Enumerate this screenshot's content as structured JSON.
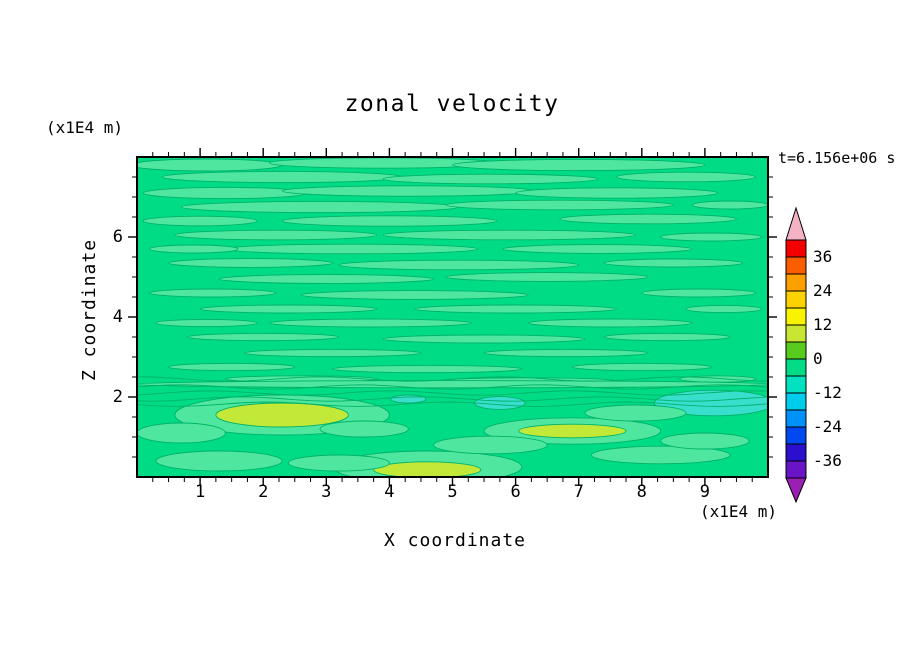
{
  "figure": {
    "title": "zonal velocity",
    "time_label": "t=6.156e+06 s",
    "x_axis": {
      "label": "X coordinate",
      "units": "(x1E4 m)"
    },
    "y_axis": {
      "label": "Z coordinate",
      "units": "(x1E4 m)"
    }
  },
  "chart_data": {
    "type": "contour",
    "title": "zonal velocity",
    "xlabel": "X coordinate",
    "ylabel": "Z coordinate",
    "x_units_label": "(x1E4 m)",
    "y_units_label": "(x1E4 m)",
    "time_annotation": "t=6.156e+06 s",
    "xlim": [
      0,
      10
    ],
    "ylim": [
      0,
      8
    ],
    "x_ticks": [
      1,
      2,
      3,
      4,
      5,
      6,
      7,
      8,
      9
    ],
    "y_ticks": [
      2,
      4,
      6
    ],
    "x_minor_step": 0.25,
    "y_minor_step": 0.5,
    "grid": false,
    "legend_position": "right-colorbar",
    "colorbar": {
      "tick_labels_top_to_bottom": [
        "36",
        "24",
        "12",
        "0",
        "-12",
        "-24",
        "-36"
      ],
      "levels": [
        -42,
        -36,
        -30,
        -24,
        -18,
        -12,
        -6,
        0,
        6,
        12,
        18,
        24,
        30,
        36,
        42
      ],
      "colors_top_to_bottom": [
        "#f40000",
        "#f95d00",
        "#fca000",
        "#fcd200",
        "#f8f400",
        "#c8e632",
        "#58cc1e",
        "#00dc86",
        "#00e2c0",
        "#00ccec",
        "#0092f8",
        "#0048f0",
        "#2a10cc",
        "#6a14c8"
      ],
      "over_arrow_color": "#f5b2c4",
      "under_arrow_color": "#9a20b4"
    },
    "field": {
      "description": "Zonal velocity is near zero (green, -6 to 6) over most of the domain, organized into thin horizontal streaks. A band of closely spaced contour lines crosses the full width near z=2. Weak positive anomalies (6-12, yellow-green) sit near x=2.3 z=1.5, x=6.9 z=1.2 and bottom center x=4.6. Weak negative anomalies (-12 to -6, cyan) sit near x=9.2 z=1.9 and x=5.8 z=1.9.",
      "base_color": "#00dc86",
      "streak_colors": {
        "g2": "#4fe79f",
        "y": "#c2e838",
        "c": "#39dfcd"
      },
      "contour_line_color": "#00b269",
      "contour_lines_z": [
        2.45,
        2.25,
        2.1,
        1.95,
        1.82
      ],
      "streaks": [
        [
          1.1,
          7.8,
          1.2,
          0.15,
          "g2"
        ],
        [
          3.9,
          7.85,
          1.8,
          0.13,
          "g2"
        ],
        [
          7.0,
          7.8,
          2.0,
          0.14,
          "g2"
        ],
        [
          2.3,
          7.5,
          1.9,
          0.14,
          "g2"
        ],
        [
          5.6,
          7.45,
          1.7,
          0.12,
          "g2"
        ],
        [
          8.7,
          7.5,
          1.1,
          0.12,
          "g2"
        ],
        [
          1.4,
          7.1,
          1.3,
          0.14,
          "g2"
        ],
        [
          4.3,
          7.15,
          2.0,
          0.13,
          "g2"
        ],
        [
          7.6,
          7.1,
          1.6,
          0.13,
          "g2"
        ],
        [
          2.9,
          6.75,
          2.2,
          0.14,
          "g2"
        ],
        [
          6.7,
          6.8,
          1.8,
          0.12,
          "g2"
        ],
        [
          9.4,
          6.8,
          0.6,
          0.1,
          "g2"
        ],
        [
          1.0,
          6.4,
          0.9,
          0.12,
          "g2"
        ],
        [
          4.0,
          6.4,
          1.7,
          0.13,
          "g2"
        ],
        [
          8.1,
          6.45,
          1.4,
          0.12,
          "g2"
        ],
        [
          2.2,
          6.05,
          1.6,
          0.12,
          "g2"
        ],
        [
          5.9,
          6.05,
          2.0,
          0.12,
          "g2"
        ],
        [
          9.1,
          6.0,
          0.8,
          0.1,
          "g2"
        ],
        [
          3.4,
          5.7,
          2.0,
          0.12,
          "g2"
        ],
        [
          7.3,
          5.7,
          1.5,
          0.11,
          "g2"
        ],
        [
          0.9,
          5.7,
          0.7,
          0.1,
          "g2"
        ],
        [
          1.8,
          5.35,
          1.3,
          0.11,
          "g2"
        ],
        [
          5.1,
          5.3,
          1.9,
          0.12,
          "g2"
        ],
        [
          8.5,
          5.35,
          1.1,
          0.1,
          "g2"
        ],
        [
          3.0,
          4.95,
          1.7,
          0.11,
          "g2"
        ],
        [
          6.5,
          5.0,
          1.6,
          0.11,
          "g2"
        ],
        [
          1.2,
          4.6,
          1.0,
          0.1,
          "g2"
        ],
        [
          4.4,
          4.55,
          1.8,
          0.11,
          "g2"
        ],
        [
          8.9,
          4.6,
          0.9,
          0.1,
          "g2"
        ],
        [
          2.4,
          4.2,
          1.4,
          0.1,
          "g2"
        ],
        [
          6.0,
          4.2,
          1.6,
          0.1,
          "g2"
        ],
        [
          9.3,
          4.2,
          0.6,
          0.09,
          "g2"
        ],
        [
          3.7,
          3.85,
          1.6,
          0.1,
          "g2"
        ],
        [
          7.5,
          3.85,
          1.3,
          0.1,
          "g2"
        ],
        [
          1.1,
          3.85,
          0.8,
          0.09,
          "g2"
        ],
        [
          2.0,
          3.5,
          1.2,
          0.09,
          "g2"
        ],
        [
          5.5,
          3.45,
          1.6,
          0.1,
          "g2"
        ],
        [
          8.4,
          3.5,
          1.0,
          0.09,
          "g2"
        ],
        [
          3.1,
          3.1,
          1.4,
          0.09,
          "g2"
        ],
        [
          6.8,
          3.1,
          1.3,
          0.09,
          "g2"
        ],
        [
          1.5,
          2.75,
          1.0,
          0.09,
          "g2"
        ],
        [
          4.6,
          2.7,
          1.5,
          0.09,
          "g2"
        ],
        [
          8.0,
          2.75,
          1.1,
          0.09,
          "g2"
        ],
        [
          2.6,
          2.45,
          1.2,
          0.08,
          "g2"
        ],
        [
          6.2,
          2.4,
          1.4,
          0.08,
          "g2"
        ],
        [
          9.2,
          2.45,
          0.6,
          0.08,
          "g2"
        ],
        [
          5.0,
          2.32,
          5.0,
          0.09,
          "g2"
        ],
        [
          2.3,
          1.55,
          1.7,
          0.5,
          "g2"
        ],
        [
          2.3,
          1.55,
          1.05,
          0.3,
          "y"
        ],
        [
          6.9,
          1.15,
          1.4,
          0.33,
          "g2"
        ],
        [
          6.9,
          1.15,
          0.85,
          0.17,
          "y"
        ],
        [
          4.6,
          0.25,
          1.5,
          0.4,
          "g2"
        ],
        [
          4.6,
          0.18,
          0.85,
          0.2,
          "y"
        ],
        [
          9.15,
          1.85,
          0.95,
          0.32,
          "c"
        ],
        [
          5.75,
          1.85,
          0.4,
          0.16,
          "c"
        ],
        [
          4.3,
          1.95,
          0.28,
          0.1,
          "c"
        ],
        [
          0.7,
          1.1,
          0.7,
          0.25,
          "g2"
        ],
        [
          3.6,
          1.2,
          0.7,
          0.2,
          "g2"
        ],
        [
          5.6,
          0.8,
          0.9,
          0.22,
          "g2"
        ],
        [
          8.3,
          0.55,
          1.1,
          0.22,
          "g2"
        ],
        [
          1.3,
          0.4,
          1.0,
          0.25,
          "g2"
        ],
        [
          7.9,
          1.6,
          0.8,
          0.2,
          "g2"
        ],
        [
          9.0,
          0.9,
          0.7,
          0.2,
          "g2"
        ],
        [
          3.2,
          0.35,
          0.8,
          0.2,
          "g2"
        ]
      ]
    }
  }
}
